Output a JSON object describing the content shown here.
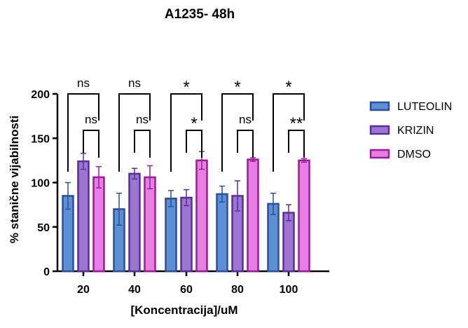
{
  "chart_data": {
    "type": "bar",
    "title": "A1235- 48h",
    "xlabel": "[Koncentracija]/uM",
    "ylabel": "% stanične vijabilnosti",
    "ylim": [
      0,
      200
    ],
    "yticks": [
      0,
      50,
      100,
      150,
      200
    ],
    "categories": [
      "20",
      "40",
      "60",
      "80",
      "100"
    ],
    "series": [
      {
        "name": "LUTEOLIN",
        "fill": "#5b8fd6",
        "stroke": "#2f4f99",
        "values": [
          85,
          70,
          82,
          87,
          76
        ],
        "errors": [
          15,
          18,
          9,
          9,
          12
        ]
      },
      {
        "name": "KRIZIN",
        "fill": "#9b75cf",
        "stroke": "#5a2e9a",
        "values": [
          124,
          110,
          83,
          85,
          66
        ],
        "errors": [
          9,
          6,
          9,
          17,
          9
        ]
      },
      {
        "name": "DMSO",
        "fill": "#e77fe3",
        "stroke": "#9c1a9c",
        "values": [
          106,
          106,
          125,
          126,
          125
        ],
        "errors": [
          12,
          13,
          10,
          2,
          2
        ]
      }
    ],
    "significance": [
      {
        "category": "20",
        "outer": "ns",
        "inner": "ns"
      },
      {
        "category": "40",
        "outer": "ns",
        "inner": "ns"
      },
      {
        "category": "60",
        "outer": "*",
        "inner": "*"
      },
      {
        "category": "80",
        "outer": "*",
        "inner": "ns"
      },
      {
        "category": "100",
        "outer": "*",
        "inner": "**"
      }
    ],
    "legend": "right",
    "grid": false
  }
}
